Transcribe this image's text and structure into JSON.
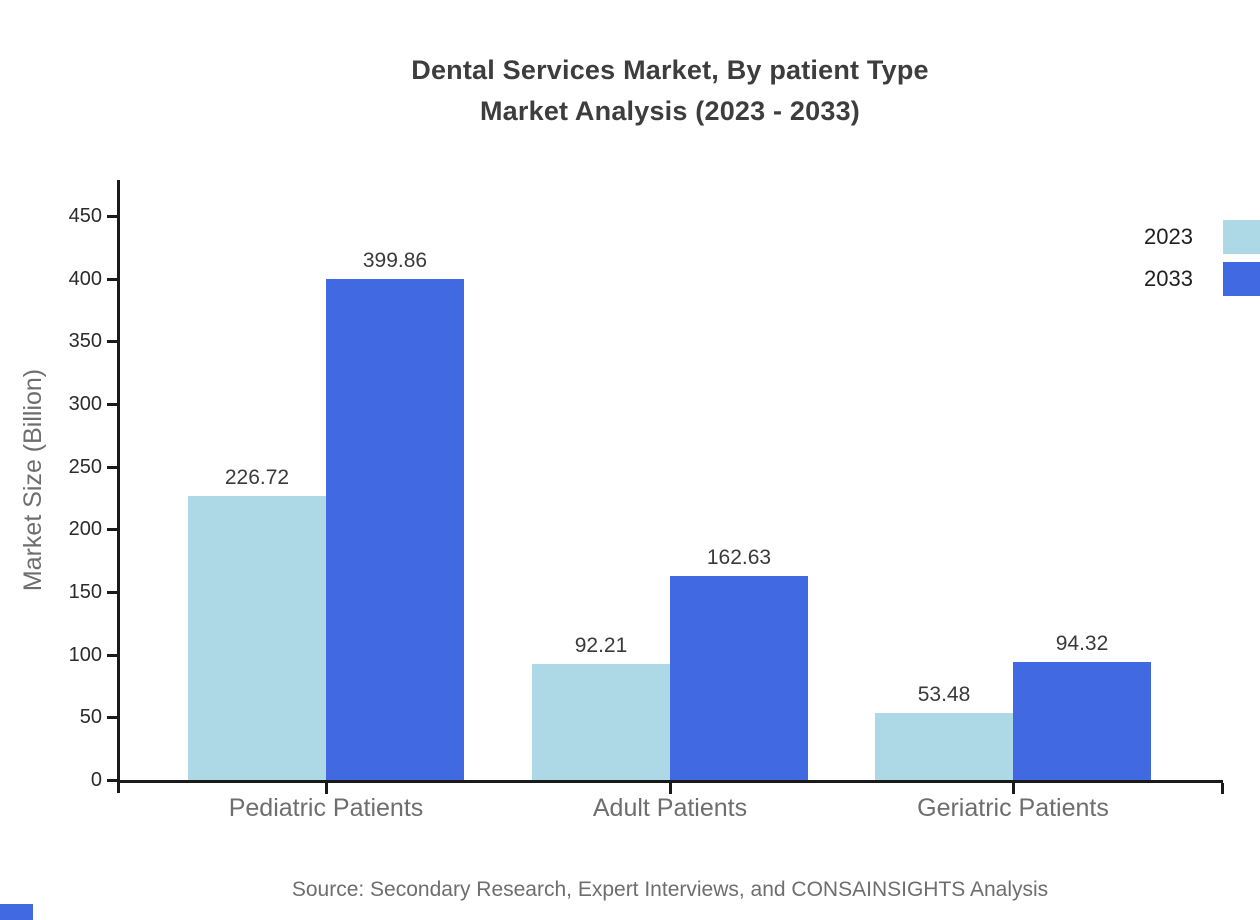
{
  "title": {
    "line1": "Dental Services Market, By patient Type",
    "line2": "Market Analysis (2023 - 2033)"
  },
  "source": "Source: Secondary Research, Expert Interviews, and CONSAINSIGHTS Analysis",
  "chart_data": {
    "type": "bar",
    "title": "Dental Services Market, By patient Type Market Analysis (2023 - 2033)",
    "categories": [
      "Pediatric Patients",
      "Adult Patients",
      "Geriatric Patients"
    ],
    "series": [
      {
        "name": "2023",
        "color": "#add8e6",
        "values": [
          226.72,
          92.21,
          53.48
        ]
      },
      {
        "name": "2033",
        "color": "#4169e1",
        "values": [
          399.86,
          162.63,
          94.32
        ]
      }
    ],
    "xlabel": "",
    "ylabel": "Market Size (Billion)",
    "ylim": [
      0,
      475
    ],
    "yticks": [
      0,
      50,
      100,
      150,
      200,
      250,
      300,
      350,
      400,
      450
    ],
    "grid": false,
    "legend_position": "top-right",
    "value_labels": true,
    "value_label_format": "2-decimals"
  },
  "colors": {
    "series_2023": "#add8e6",
    "series_2033": "#4169e1",
    "axis": "#1a1a1a",
    "title_text": "#3d3d3d",
    "muted_text": "#6e6e6e",
    "tick_text": "#2b2b2b",
    "brand_mark": "#4169e1"
  }
}
